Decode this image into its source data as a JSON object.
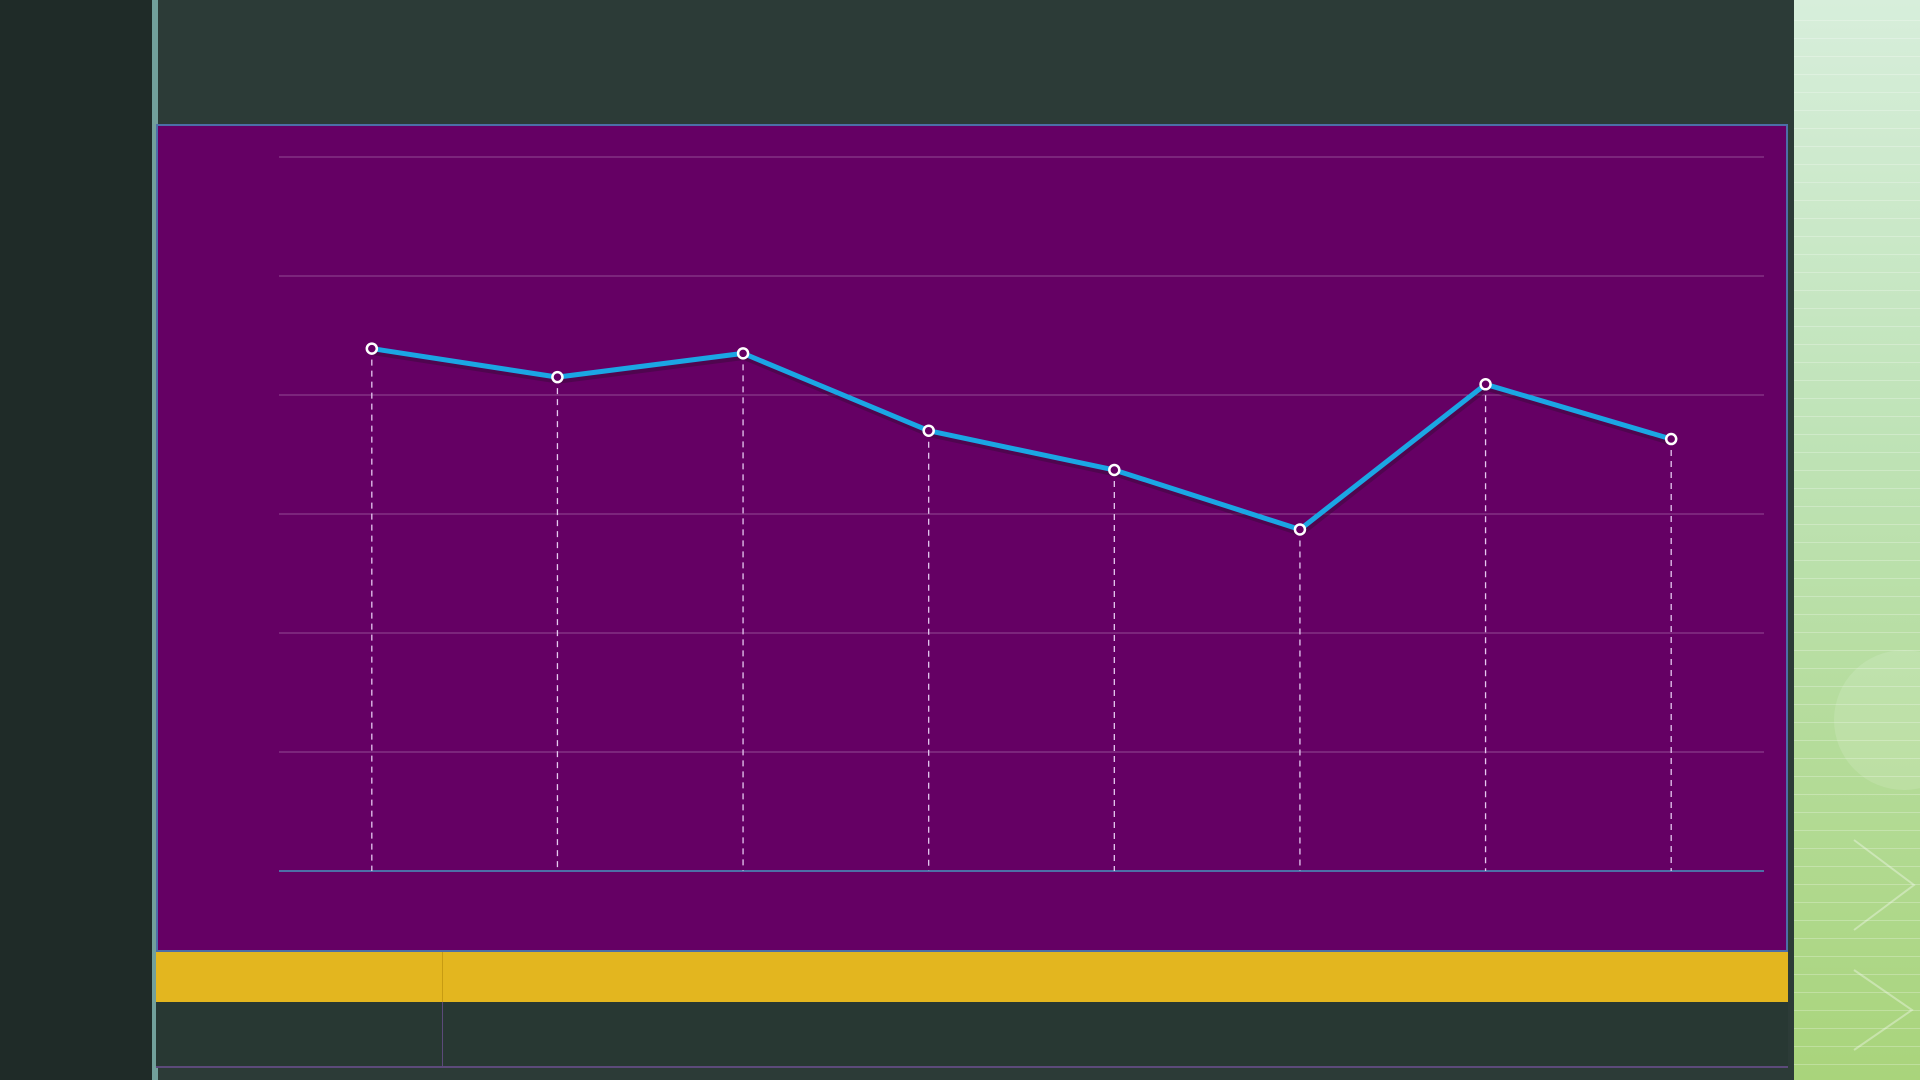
{
  "colors": {
    "background": "#2b3a36",
    "chart_background": "#650064",
    "line": "#1ba6e4",
    "grid": "#a66aa6",
    "bar_accent": "#e3b61f",
    "panel_green": "#a9d47b"
  },
  "chart_data": {
    "type": "line",
    "title": "",
    "xlabel": "",
    "ylabel": "",
    "categories": [
      "",
      "",
      "",
      "",
      "",
      "",
      "",
      ""
    ],
    "series": [
      {
        "values": [
          4.39,
          4.15,
          4.35,
          3.7,
          3.37,
          2.87,
          4.09,
          3.63
        ]
      }
    ],
    "ylim": [
      0,
      6
    ],
    "grid": true,
    "markers": true,
    "drop_lines": true
  }
}
